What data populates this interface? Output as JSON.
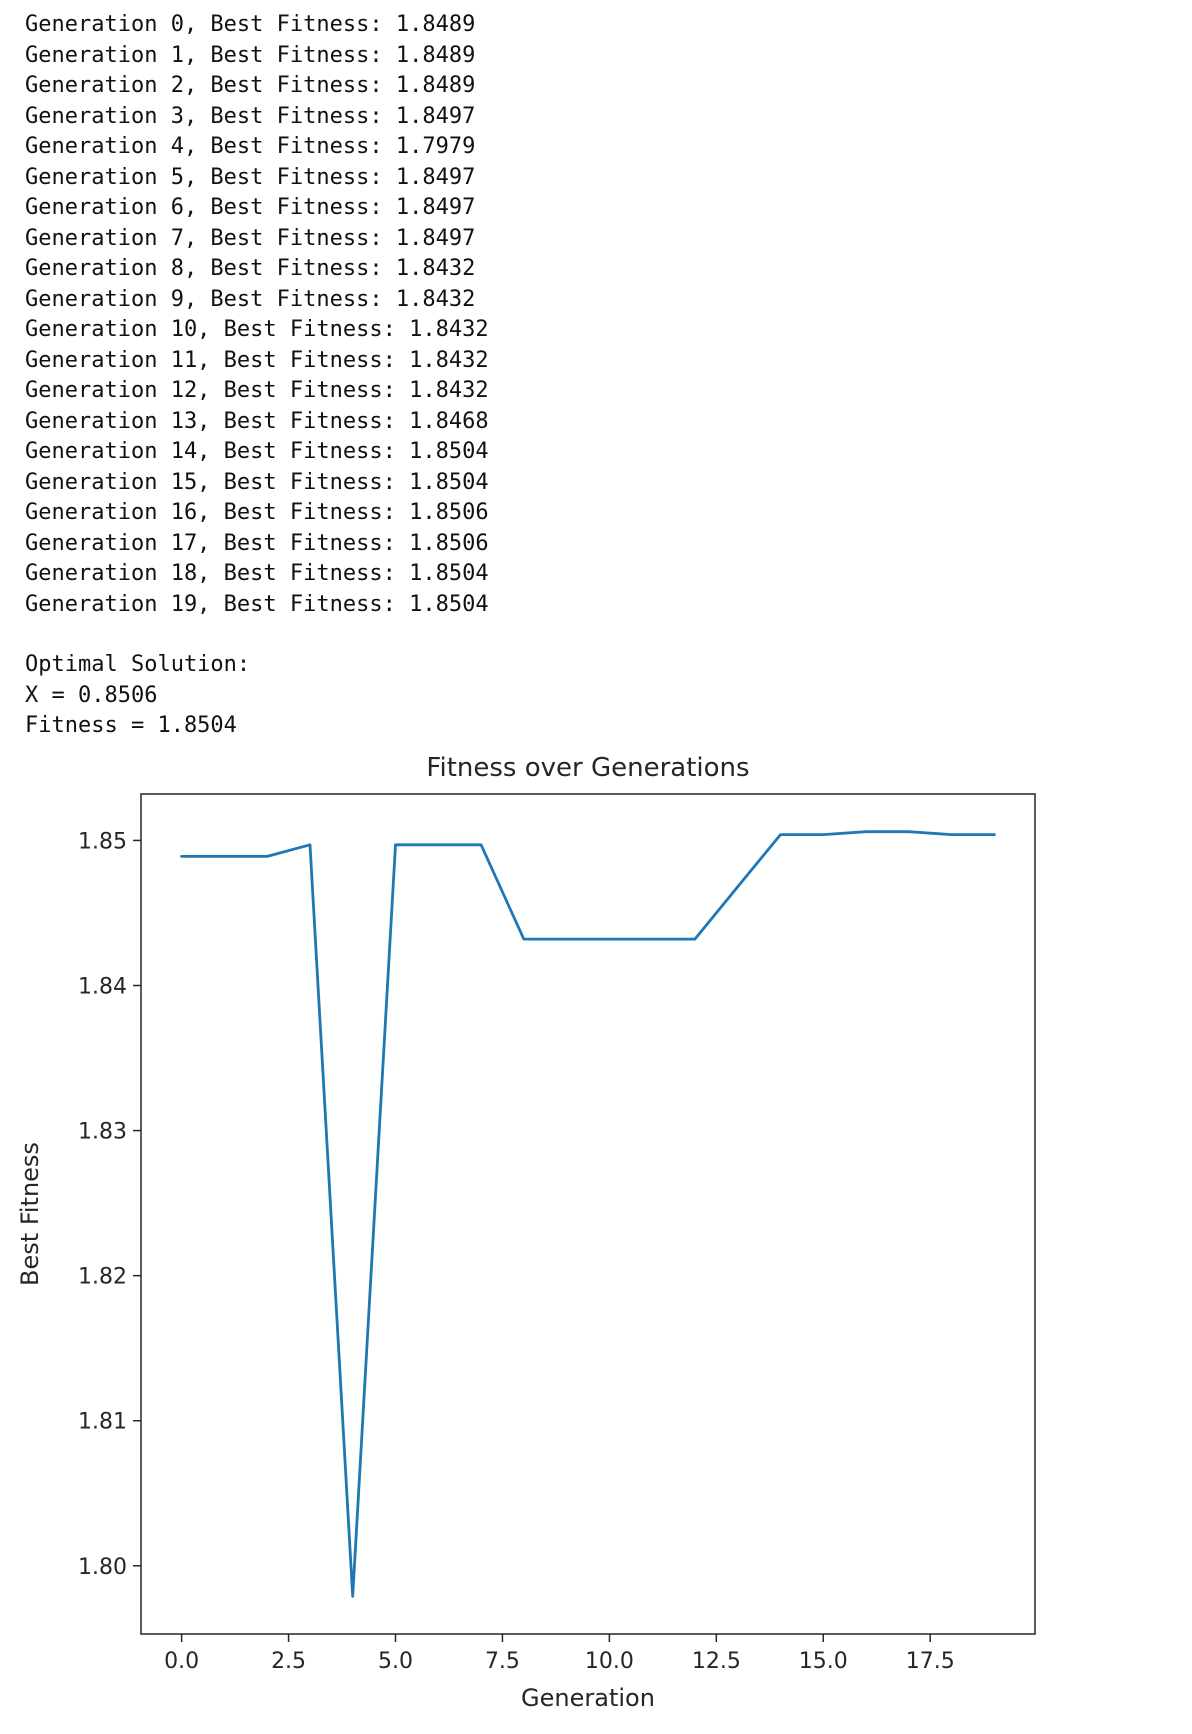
{
  "console": {
    "generation_lines": [
      "Generation 0, Best Fitness: 1.8489",
      "Generation 1, Best Fitness: 1.8489",
      "Generation 2, Best Fitness: 1.8489",
      "Generation 3, Best Fitness: 1.8497",
      "Generation 4, Best Fitness: 1.7979",
      "Generation 5, Best Fitness: 1.8497",
      "Generation 6, Best Fitness: 1.8497",
      "Generation 7, Best Fitness: 1.8497",
      "Generation 8, Best Fitness: 1.8432",
      "Generation 9, Best Fitness: 1.8432",
      "Generation 10, Best Fitness: 1.8432",
      "Generation 11, Best Fitness: 1.8432",
      "Generation 12, Best Fitness: 1.8432",
      "Generation 13, Best Fitness: 1.8468",
      "Generation 14, Best Fitness: 1.8504",
      "Generation 15, Best Fitness: 1.8504",
      "Generation 16, Best Fitness: 1.8506",
      "Generation 17, Best Fitness: 1.8506",
      "Generation 18, Best Fitness: 1.8504",
      "Generation 19, Best Fitness: 1.8504"
    ],
    "optimal_lines": [
      "Optimal Solution:",
      "X = 0.8506",
      "Fitness = 1.8504"
    ]
  },
  "chart_data": {
    "type": "line",
    "title": "Fitness over Generations",
    "xlabel": "Generation",
    "ylabel": "Best Fitness",
    "x": [
      0,
      1,
      2,
      3,
      4,
      5,
      6,
      7,
      8,
      9,
      10,
      11,
      12,
      13,
      14,
      15,
      16,
      17,
      18,
      19
    ],
    "y": [
      1.8489,
      1.8489,
      1.8489,
      1.8497,
      1.7979,
      1.8497,
      1.8497,
      1.8497,
      1.8432,
      1.8432,
      1.8432,
      1.8432,
      1.8432,
      1.8468,
      1.8504,
      1.8504,
      1.8506,
      1.8506,
      1.8504,
      1.8504
    ],
    "xticks": [
      0,
      2.5,
      5,
      7.5,
      10,
      12.5,
      15,
      17.5
    ],
    "xtick_labels": [
      "0.0",
      "2.5",
      "5.0",
      "7.5",
      "10.0",
      "12.5",
      "15.0",
      "17.5"
    ],
    "yticks": [
      1.8,
      1.81,
      1.82,
      1.83,
      1.84,
      1.85
    ],
    "ytick_labels": [
      "1.80",
      "1.81",
      "1.82",
      "1.83",
      "1.84",
      "1.85"
    ],
    "xlim": [
      -0.95,
      19.95
    ],
    "ylim": [
      1.7953,
      1.8532
    ],
    "grid": false,
    "legend": null,
    "line_color": "#1f77b4",
    "axis_color": "#262626",
    "background_color": "#ffffff"
  }
}
